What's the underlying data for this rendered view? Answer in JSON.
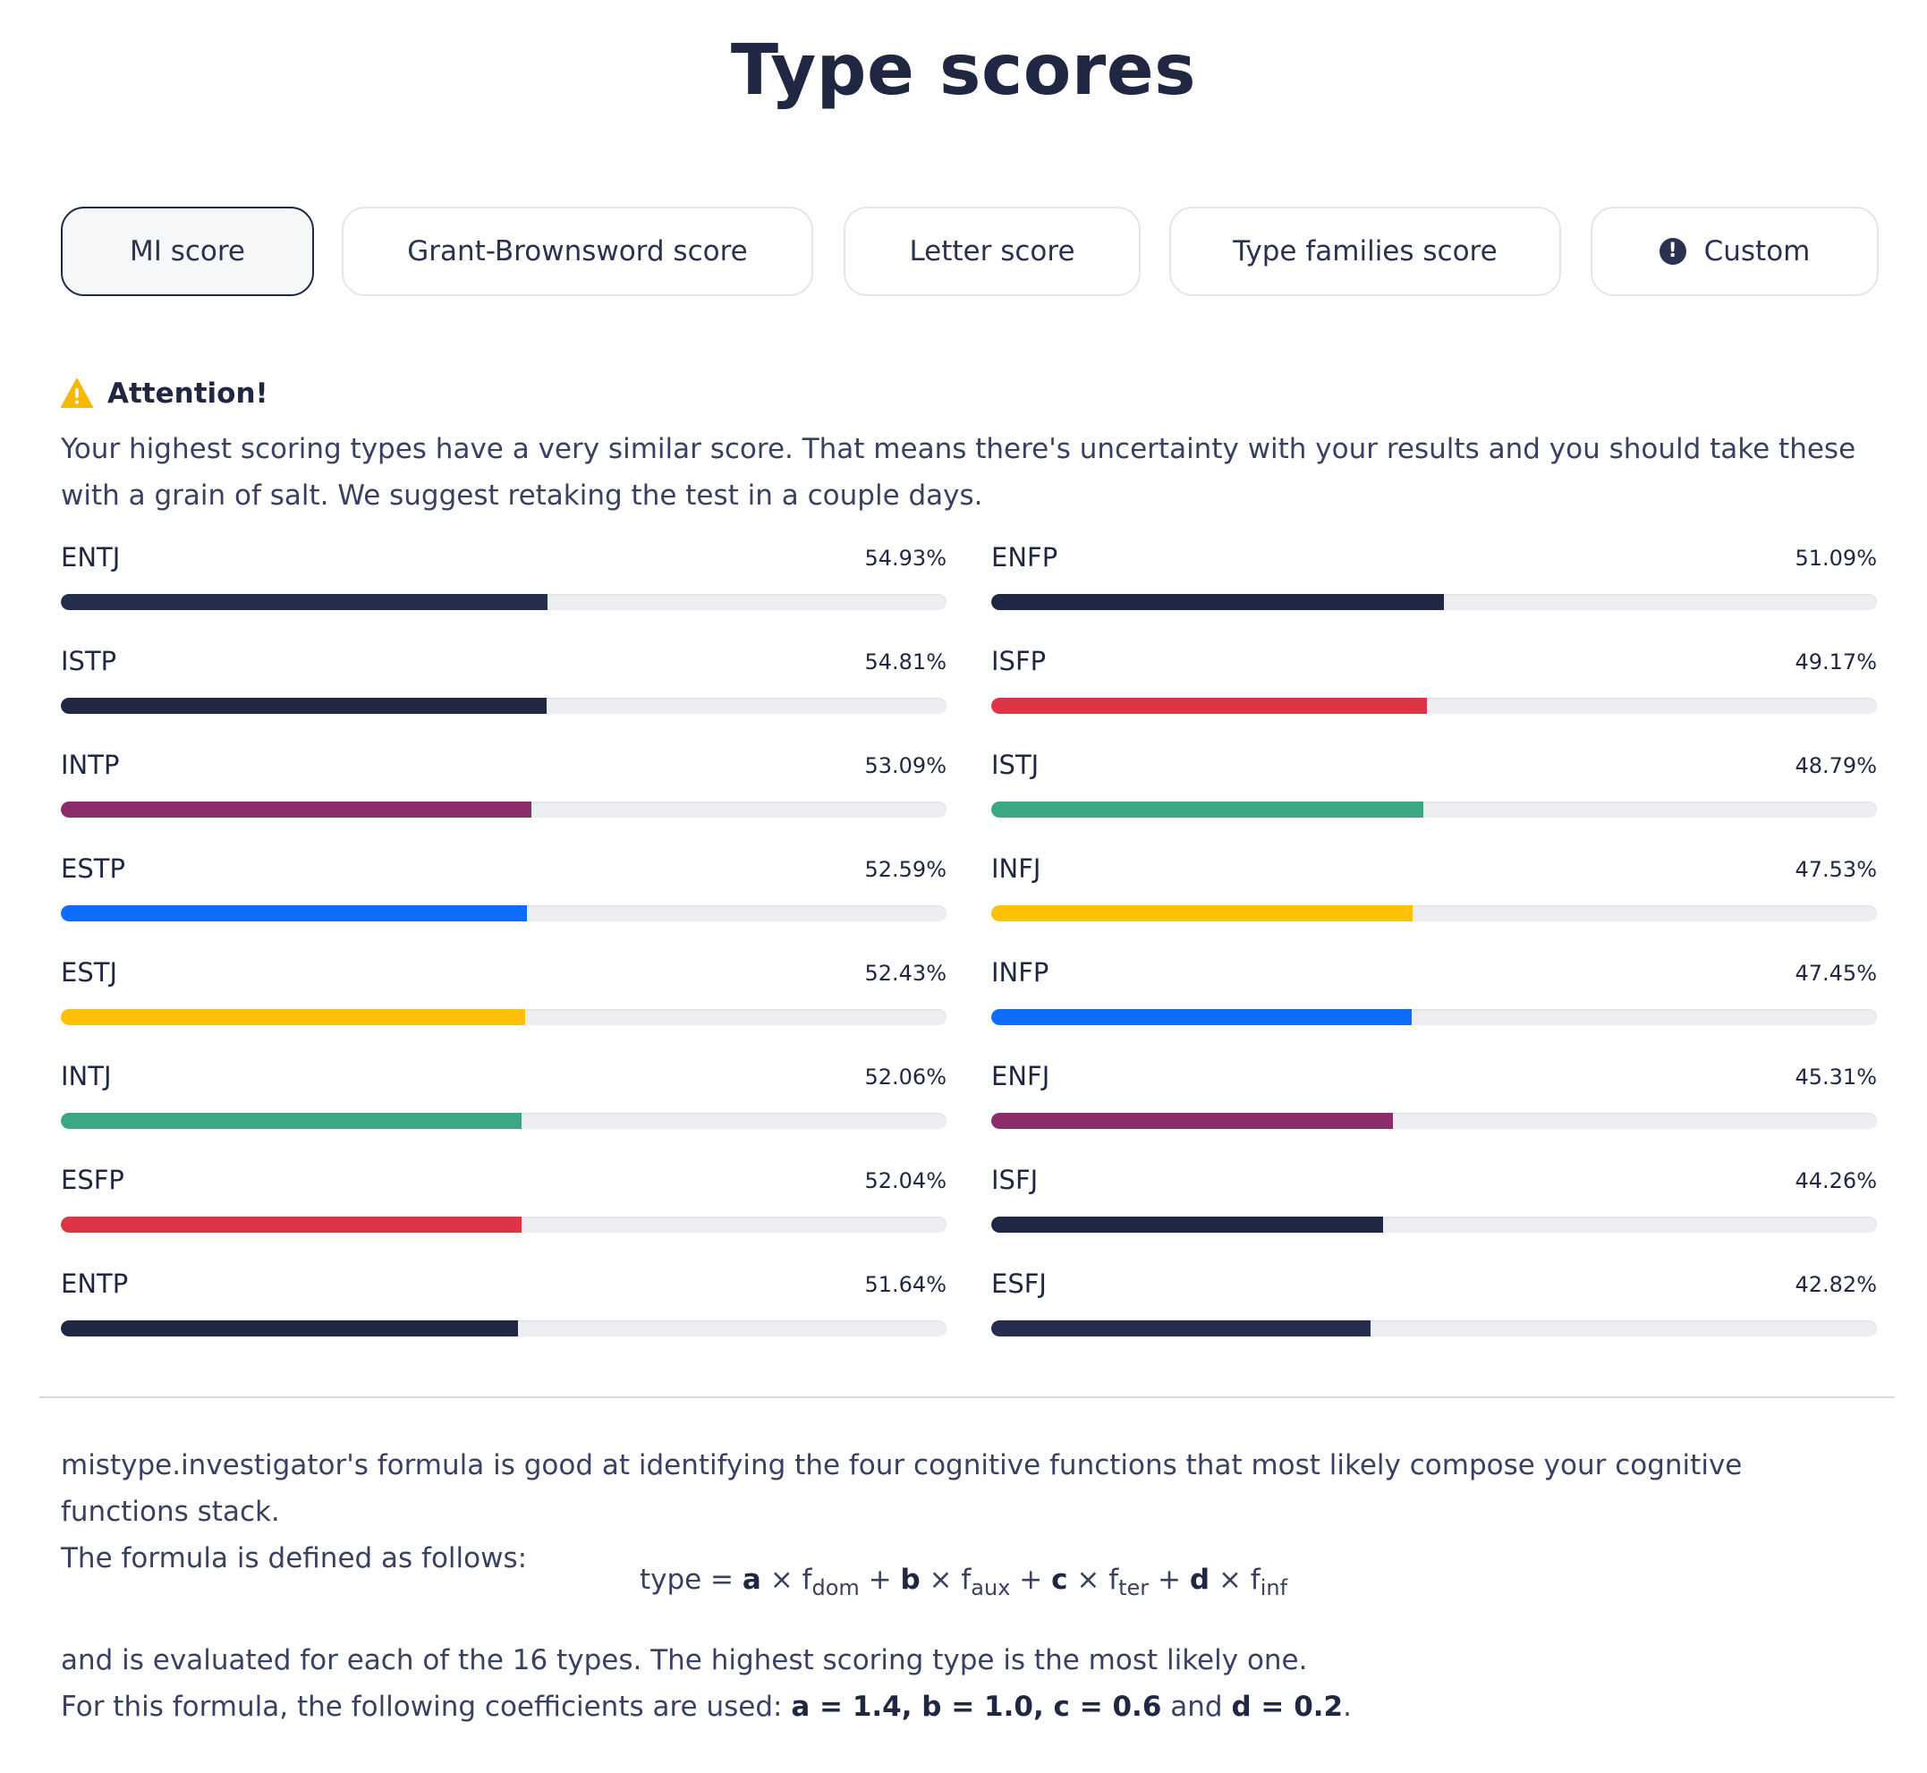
{
  "page": {
    "title": "Type scores"
  },
  "tabs": [
    {
      "label": "MI score",
      "active": true
    },
    {
      "label": "Grant-Brownsword score",
      "active": false
    },
    {
      "label": "Letter score",
      "active": false
    },
    {
      "label": "Type families score",
      "active": false
    },
    {
      "label": "Custom",
      "active": false,
      "icon": "exclamation-circle-icon"
    }
  ],
  "attention": {
    "icon": "warning-icon",
    "title": "Attention!",
    "text": "Your highest scoring types have a very similar score. That means there's uncertainty with your results and you should take these with a grain of salt. We suggest retaking the test in a couple days."
  },
  "colors": {
    "navy": "#1f2742",
    "navy_light": "#262e4d",
    "purple": "#8b2d6b",
    "blue": "#0d6efd",
    "yellow": "#ffc107",
    "green": "#3ba883",
    "red": "#dc3545",
    "warning": "#f6b800"
  },
  "scores": {
    "left": [
      {
        "type": "ENTJ",
        "value": 54.93,
        "display": "54.93%",
        "color": "#262e4d"
      },
      {
        "type": "ISTP",
        "value": 54.81,
        "display": "54.81%",
        "color": "#1f2742"
      },
      {
        "type": "INTP",
        "value": 53.09,
        "display": "53.09%",
        "color": "#8b2d6b"
      },
      {
        "type": "ESTP",
        "value": 52.59,
        "display": "52.59%",
        "color": "#0d6efd"
      },
      {
        "type": "ESTJ",
        "value": 52.43,
        "display": "52.43%",
        "color": "#ffc107"
      },
      {
        "type": "INTJ",
        "value": 52.06,
        "display": "52.06%",
        "color": "#3ba883"
      },
      {
        "type": "ESFP",
        "value": 52.04,
        "display": "52.04%",
        "color": "#dc3545"
      },
      {
        "type": "ENTP",
        "value": 51.64,
        "display": "51.64%",
        "color": "#1f2742"
      }
    ],
    "right": [
      {
        "type": "ENFP",
        "value": 51.09,
        "display": "51.09%",
        "color": "#1f2742"
      },
      {
        "type": "ISFP",
        "value": 49.17,
        "display": "49.17%",
        "color": "#dc3545"
      },
      {
        "type": "ISTJ",
        "value": 48.79,
        "display": "48.79%",
        "color": "#3ba883"
      },
      {
        "type": "INFJ",
        "value": 47.53,
        "display": "47.53%",
        "color": "#ffc107"
      },
      {
        "type": "INFP",
        "value": 47.45,
        "display": "47.45%",
        "color": "#0d6efd"
      },
      {
        "type": "ENFJ",
        "value": 45.31,
        "display": "45.31%",
        "color": "#8b2d6b"
      },
      {
        "type": "ISFJ",
        "value": 44.26,
        "display": "44.26%",
        "color": "#1f2742"
      },
      {
        "type": "ESFJ",
        "value": 42.82,
        "display": "42.82%",
        "color": "#262e4d"
      }
    ]
  },
  "explanation": {
    "line1": "mistype.investigator's formula is good at identifying the four cognitive functions that most likely compose your cognitive functions stack.",
    "line2": "The formula is defined as follows:"
  },
  "formula": {
    "lhs": "type =",
    "a": "a",
    "b": "b",
    "c": "c",
    "d": "d",
    "times": "×",
    "plus": "+",
    "f": "f",
    "dom": "dom",
    "aux": "aux",
    "ter": "ter",
    "inf": "inf"
  },
  "outro": {
    "line1": "and is evaluated for each of the 16 types. The highest scoring type is the most likely one.",
    "line2_prefix": "For this formula, the following coefficients are used:",
    "coefficients_bold": "a = 1.4, b = 1.0, c = 0.6",
    "and": "and",
    "last_bold": "d = 0.2",
    "period": "."
  }
}
